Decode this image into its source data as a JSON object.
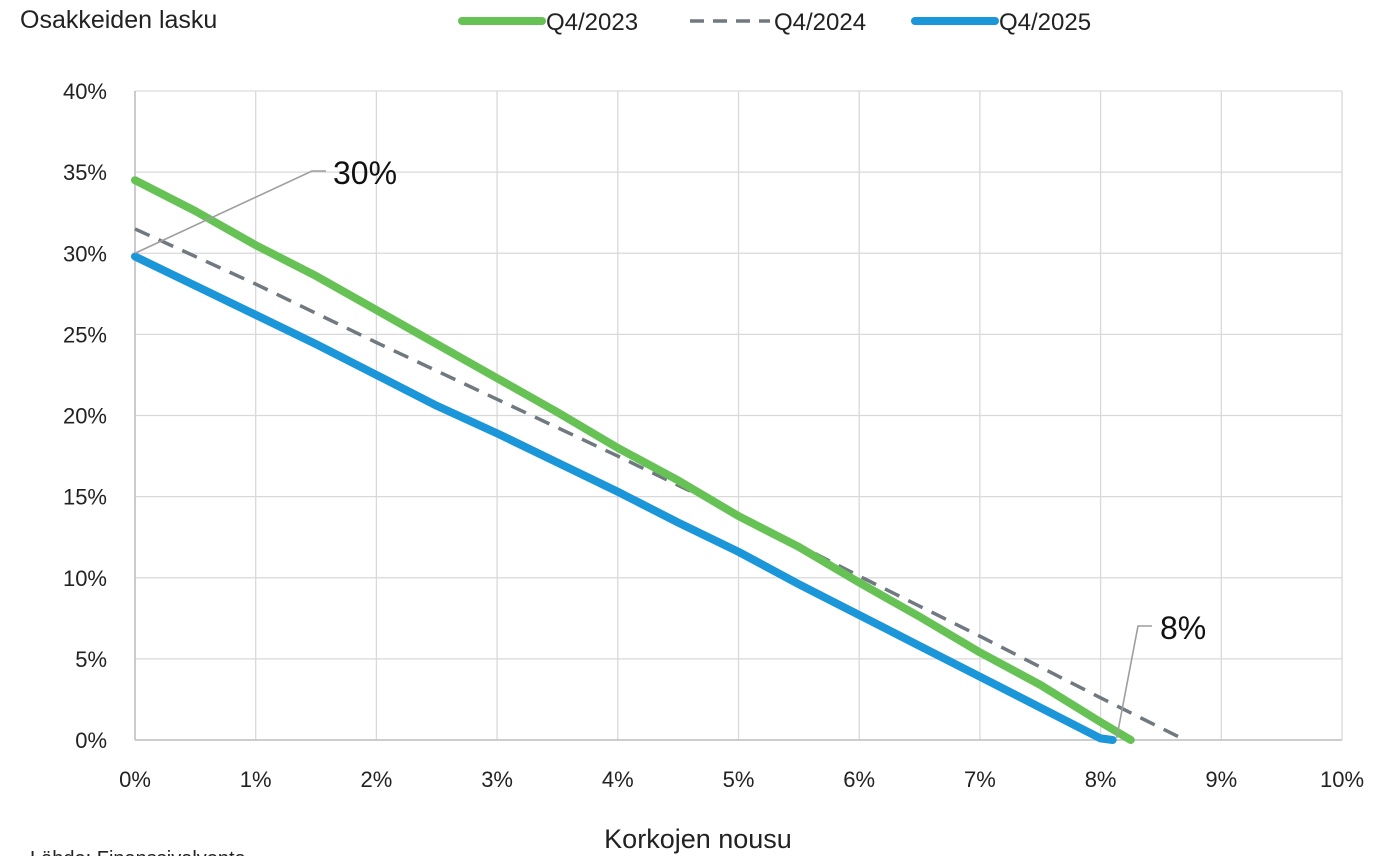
{
  "chart_data": {
    "type": "line",
    "title": "Osakkeiden lasku",
    "xlabel": "Korkojen nousu",
    "ylabel": "",
    "source": "Lähde: Finanssivalvonta",
    "xlim": [
      0,
      10
    ],
    "ylim": [
      0,
      40
    ],
    "x_ticks": [
      "0%",
      "1%",
      "2%",
      "3%",
      "4%",
      "5%",
      "6%",
      "7%",
      "8%",
      "9%",
      "10%"
    ],
    "y_ticks": [
      "0%",
      "5%",
      "10%",
      "15%",
      "20%",
      "25%",
      "30%",
      "35%",
      "40%"
    ],
    "grid": true,
    "legend_position": "top",
    "series": [
      {
        "name": "Q4/2023",
        "color": "#66c255",
        "style": "solid",
        "x": [
          0,
          0.5,
          1,
          1.5,
          2,
          2.5,
          3,
          3.5,
          4,
          4.5,
          5,
          5.5,
          6,
          6.5,
          7,
          7.5,
          8,
          8.25
        ],
        "y": [
          34.5,
          32.6,
          30.5,
          28.6,
          26.5,
          24.4,
          22.3,
          20.2,
          18.0,
          16.0,
          13.8,
          11.9,
          9.7,
          7.6,
          5.4,
          3.4,
          1.1,
          0
        ]
      },
      {
        "name": "Q4/2024",
        "color": "#707880",
        "style": "dashed",
        "x": [
          0,
          1,
          2,
          3,
          4,
          5,
          6,
          7,
          8,
          8.7
        ],
        "y": [
          31.5,
          28.1,
          24.5,
          21.0,
          17.5,
          13.9,
          10.1,
          6.4,
          2.6,
          0
        ]
      },
      {
        "name": "Q4/2025",
        "color": "#1a96d9",
        "style": "solid",
        "x": [
          0,
          0.5,
          1,
          1.5,
          2,
          2.5,
          3,
          3.5,
          4,
          4.5,
          5,
          5.5,
          6,
          6.5,
          7,
          7.5,
          8,
          8.1
        ],
        "y": [
          29.8,
          28.0,
          26.2,
          24.4,
          22.5,
          20.6,
          18.9,
          17.1,
          15.3,
          13.4,
          11.6,
          9.6,
          7.7,
          5.8,
          3.9,
          2.0,
          0.1,
          0
        ]
      }
    ],
    "annotations": [
      {
        "text": "30%",
        "x": 0,
        "y": 30
      },
      {
        "text": "8%",
        "x": 8.1,
        "y": 0
      }
    ]
  }
}
